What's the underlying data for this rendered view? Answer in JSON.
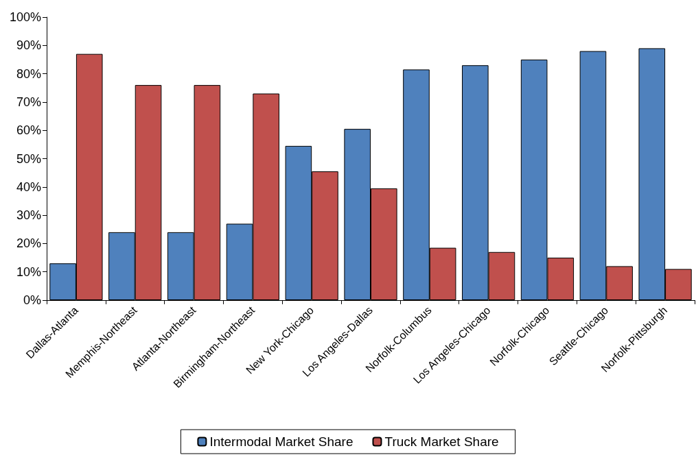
{
  "chart_data": {
    "type": "bar",
    "categories": [
      "Dallas-Atlanta",
      "Memphis-Northeast",
      "Atlanta-Northeast",
      "Birmingham-Northeast",
      "New York-Chicago",
      "Los Angeles-Dallas",
      "Norfolk-Columbus",
      "Los Angeles-Chicago",
      "Norfolk-Chicago",
      "Seattle-Chicago",
      "Norfolk-Pittsburgh"
    ],
    "series": [
      {
        "name": "Intermodal Market Share",
        "color": "#4f81bd",
        "values": [
          13,
          24,
          24,
          27,
          54.5,
          60.5,
          81.5,
          83,
          85,
          88,
          89
        ]
      },
      {
        "name": "Truck Market Share",
        "color": "#c0504d",
        "values": [
          87,
          76,
          76,
          73,
          45.5,
          39.5,
          18.5,
          17,
          15,
          12,
          11
        ]
      }
    ],
    "ylim": [
      0,
      100
    ],
    "yticks": [
      {
        "value": 0,
        "label": "0%"
      },
      {
        "value": 10,
        "label": "10%"
      },
      {
        "value": 20,
        "label": "20%"
      },
      {
        "value": 30,
        "label": "30%"
      },
      {
        "value": 40,
        "label": "40%"
      },
      {
        "value": 50,
        "label": "50%"
      },
      {
        "value": 60,
        "label": "60%"
      },
      {
        "value": 70,
        "label": "70%"
      },
      {
        "value": 80,
        "label": "80%"
      },
      {
        "value": 90,
        "label": "90%"
      },
      {
        "value": 100,
        "label": "100%"
      }
    ],
    "grid": false,
    "legend": "bottom"
  }
}
